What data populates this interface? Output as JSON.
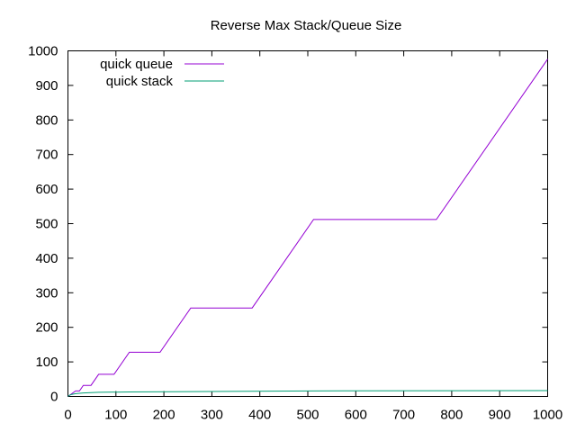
{
  "chart_data": {
    "type": "line",
    "title": "Reverse Max Stack/Queue Size",
    "xlabel": "",
    "ylabel": "",
    "xlim": [
      0,
      1000
    ],
    "ylim": [
      0,
      1000
    ],
    "x_ticks": [
      "0",
      "100",
      "200",
      "300",
      "400",
      "500",
      "600",
      "700",
      "800",
      "900",
      "1000"
    ],
    "y_ticks": [
      "0",
      "100",
      "200",
      "300",
      "400",
      "500",
      "600",
      "700",
      "800",
      "900",
      "1000"
    ],
    "grid": false,
    "legend_position": "top-left",
    "series": [
      {
        "name": "quick queue",
        "color": "#9400d3",
        "points": [
          [
            0,
            0
          ],
          [
            16,
            16
          ],
          [
            24,
            16
          ],
          [
            32,
            32
          ],
          [
            48,
            32
          ],
          [
            64,
            64
          ],
          [
            96,
            64
          ],
          [
            128,
            128
          ],
          [
            192,
            128
          ],
          [
            256,
            256
          ],
          [
            384,
            256
          ],
          [
            512,
            512
          ],
          [
            768,
            512
          ],
          [
            1000,
            976
          ]
        ]
      },
      {
        "name": "quick stack",
        "color": "#009e73",
        "points": [
          [
            0,
            0
          ],
          [
            4,
            4
          ],
          [
            8,
            6
          ],
          [
            16,
            8
          ],
          [
            32,
            10
          ],
          [
            64,
            12
          ],
          [
            128,
            13
          ],
          [
            256,
            14
          ],
          [
            512,
            16
          ],
          [
            1000,
            17
          ]
        ]
      }
    ]
  }
}
